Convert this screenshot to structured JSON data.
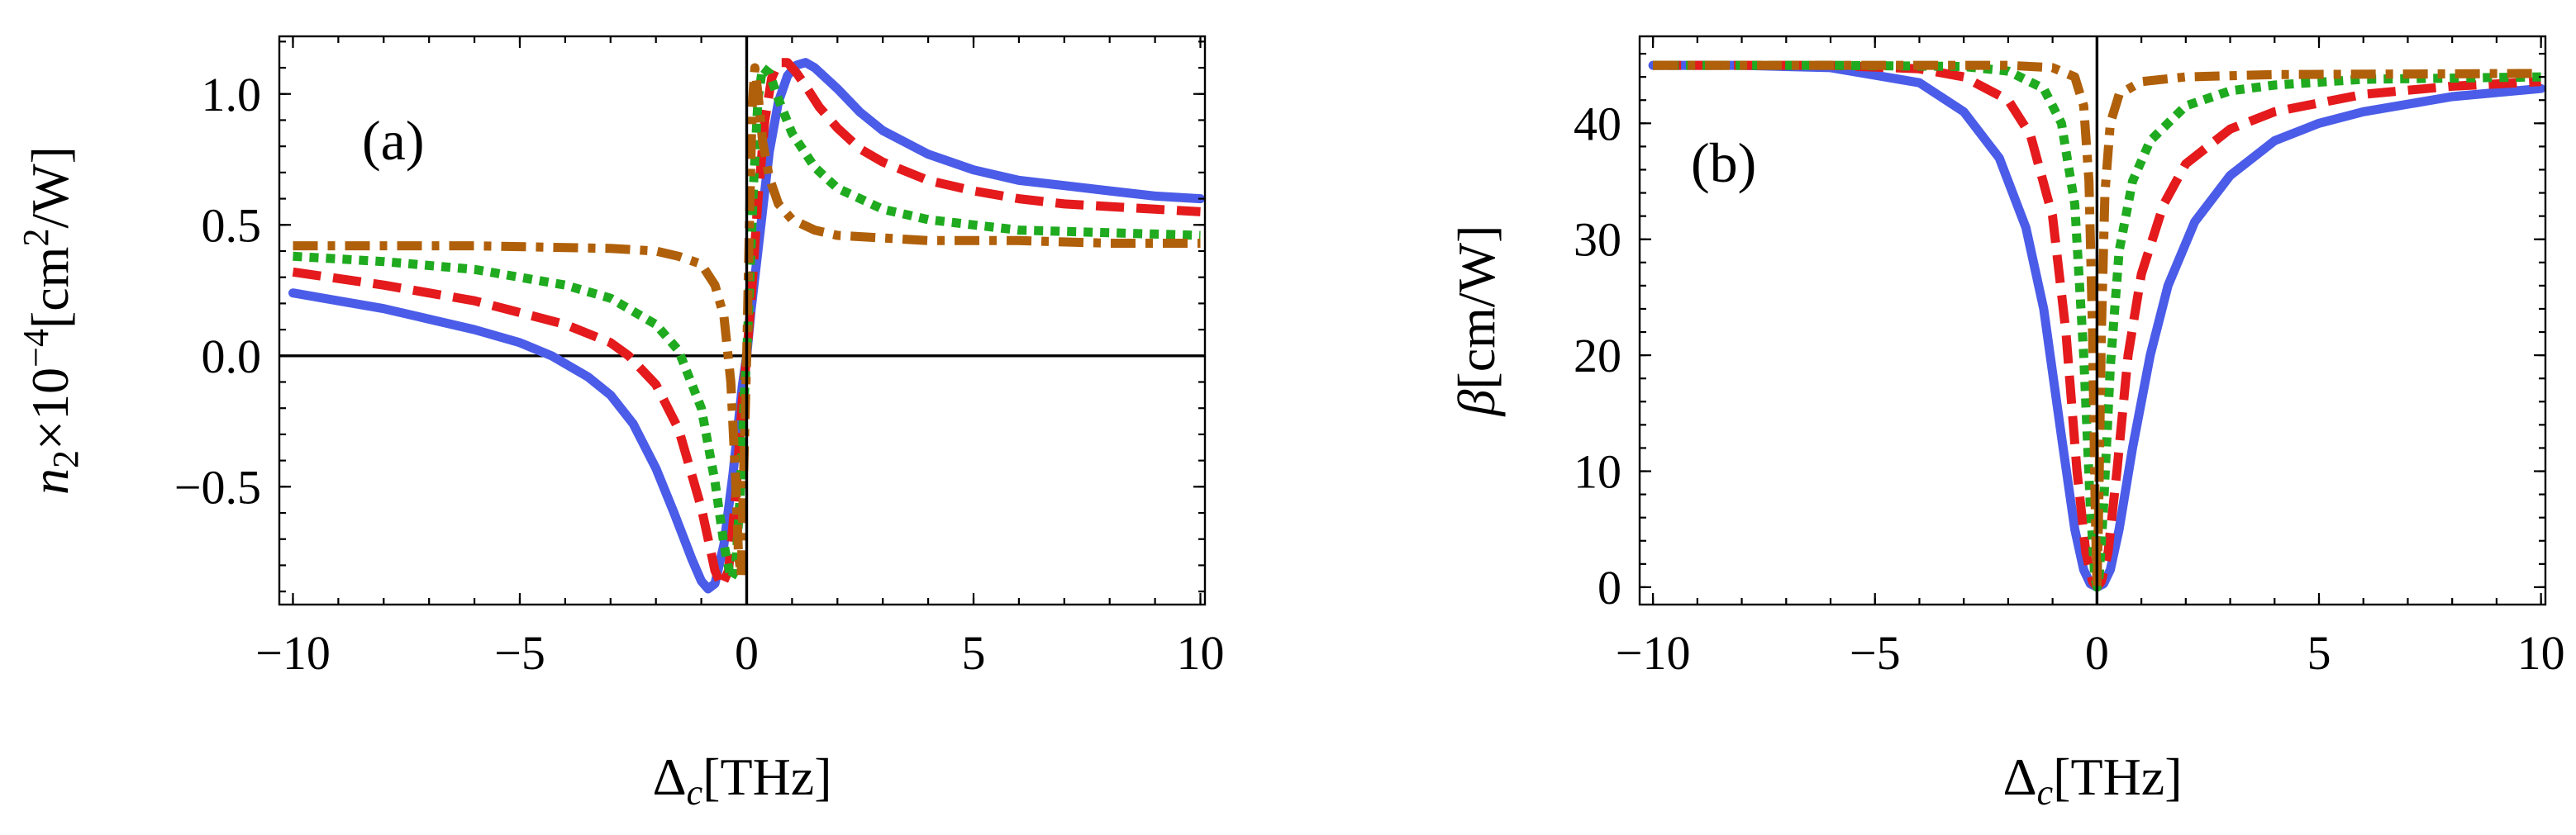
{
  "chart_data": [
    {
      "type": "line",
      "panel_label": "(a)",
      "xlabel": "Δ_c[THz]",
      "ylabel": "n_2×10^-4[cm^2/W]",
      "xlim": [
        -10.3,
        10.1
      ],
      "ylim": [
        -0.95,
        1.22
      ],
      "xticks": [
        -10,
        -5,
        0,
        5,
        10
      ],
      "xtick_labels": [
        "−10",
        "−5",
        "0",
        "5",
        "10"
      ],
      "yticks": [
        -0.5,
        0.0,
        0.5,
        1.0
      ],
      "ytick_labels": [
        "−0.5",
        "0.0",
        "0.5",
        "1.0"
      ],
      "series": [
        {
          "name": "solid",
          "color": "#4b5ce8",
          "style": "solid",
          "x": [
            -10,
            -8,
            -6,
            -5,
            -4.3,
            -3.5,
            -3,
            -2.5,
            -2,
            -1.6,
            -1.2,
            -1.0,
            -0.85,
            -0.7,
            -0.5,
            -0.3,
            -0.1,
            0,
            0.1,
            0.3,
            0.5,
            0.7,
            0.9,
            1.1,
            1.3,
            1.5,
            2,
            2.5,
            3,
            4,
            5,
            6,
            7,
            8,
            9,
            10
          ],
          "y": [
            0.24,
            0.18,
            0.1,
            0.05,
            0.0,
            -0.08,
            -0.15,
            -0.26,
            -0.43,
            -0.6,
            -0.78,
            -0.86,
            -0.89,
            -0.87,
            -0.72,
            -0.45,
            -0.12,
            0.0,
            0.18,
            0.48,
            0.78,
            0.97,
            1.07,
            1.11,
            1.12,
            1.1,
            1.02,
            0.93,
            0.86,
            0.77,
            0.71,
            0.67,
            0.65,
            0.63,
            0.61,
            0.6
          ]
        },
        {
          "name": "dashed",
          "color": "#e41a1c",
          "style": "dashed",
          "x": [
            -10,
            -8,
            -6,
            -4,
            -3,
            -2.6,
            -2,
            -1.5,
            -1.0,
            -0.7,
            -0.55,
            -0.4,
            -0.25,
            -0.1,
            0,
            0.1,
            0.25,
            0.4,
            0.55,
            0.7,
            0.9,
            1.1,
            1.3,
            1.6,
            2,
            2.5,
            3,
            4,
            5,
            6,
            7,
            8,
            9,
            10
          ],
          "y": [
            0.32,
            0.27,
            0.21,
            0.12,
            0.05,
            0.0,
            -0.11,
            -0.28,
            -0.58,
            -0.82,
            -0.88,
            -0.82,
            -0.55,
            -0.18,
            0.0,
            0.22,
            0.6,
            0.9,
            1.06,
            1.12,
            1.12,
            1.08,
            1.03,
            0.95,
            0.87,
            0.79,
            0.74,
            0.67,
            0.63,
            0.6,
            0.58,
            0.57,
            0.56,
            0.55
          ]
        },
        {
          "name": "dotted",
          "color": "#1faa1f",
          "style": "dotted",
          "x": [
            -10,
            -8,
            -6,
            -4,
            -3,
            -2,
            -1.5,
            -1.0,
            -0.7,
            -0.5,
            -0.35,
            -0.25,
            -0.15,
            -0.05,
            0,
            0.05,
            0.15,
            0.25,
            0.35,
            0.5,
            0.7,
            1.0,
            1.5,
            2,
            3,
            4,
            5,
            6,
            8,
            10
          ],
          "y": [
            0.38,
            0.36,
            0.33,
            0.27,
            0.22,
            0.12,
            0.02,
            -0.2,
            -0.48,
            -0.72,
            -0.85,
            -0.82,
            -0.55,
            -0.15,
            0.0,
            0.2,
            0.65,
            0.98,
            1.1,
            1.08,
            0.98,
            0.85,
            0.72,
            0.64,
            0.56,
            0.52,
            0.5,
            0.48,
            0.47,
            0.46
          ]
        },
        {
          "name": "dash-dot",
          "color": "#b0600a",
          "style": "dashdot",
          "x": [
            -10,
            -6,
            -3,
            -2,
            -1.5,
            -1.0,
            -0.7,
            -0.5,
            -0.35,
            -0.25,
            -0.18,
            -0.12,
            -0.06,
            0,
            0.06,
            0.12,
            0.18,
            0.25,
            0.35,
            0.5,
            0.7,
            1.0,
            1.5,
            2,
            3,
            4,
            6,
            8,
            10
          ],
          "y": [
            0.42,
            0.42,
            0.41,
            0.4,
            0.38,
            0.35,
            0.27,
            0.15,
            -0.1,
            -0.45,
            -0.76,
            -0.84,
            -0.4,
            0.0,
            0.5,
            0.95,
            1.1,
            1.0,
            0.82,
            0.68,
            0.58,
            0.52,
            0.48,
            0.46,
            0.45,
            0.44,
            0.44,
            0.43,
            0.43
          ]
        }
      ]
    },
    {
      "type": "line",
      "panel_label": "(b)",
      "xlabel": "Δ_c[THz]",
      "ylabel": "β[cm/W]",
      "xlim": [
        -10.3,
        10.1
      ],
      "ylim": [
        -1.5,
        47.5
      ],
      "xticks": [
        -10,
        -5,
        0,
        5,
        10
      ],
      "xtick_labels": [
        "−10",
        "−5",
        "0",
        "5",
        "10"
      ],
      "yticks": [
        0,
        10,
        20,
        30,
        40
      ],
      "ytick_labels": [
        "0",
        "10",
        "20",
        "30",
        "40"
      ],
      "series": [
        {
          "name": "solid",
          "color": "#4b5ce8",
          "style": "solid",
          "x": [
            -10,
            -8,
            -6,
            -4,
            -3,
            -2.2,
            -1.6,
            -1.2,
            -0.8,
            -0.5,
            -0.3,
            -0.15,
            0,
            0.15,
            0.3,
            0.5,
            0.8,
            1.2,
            1.6,
            2.2,
            3,
            4,
            5,
            6,
            8,
            10
          ],
          "y": [
            45,
            45,
            44.8,
            43.5,
            41,
            37,
            31,
            24,
            13,
            5,
            1.5,
            0.3,
            0,
            0.3,
            1.5,
            5,
            12,
            20,
            26,
            31.5,
            35.5,
            38.5,
            40,
            41,
            42.3,
            43
          ]
        },
        {
          "name": "dashed",
          "color": "#e41a1c",
          "style": "dashed",
          "x": [
            -10,
            -6,
            -4,
            -3,
            -2,
            -1.5,
            -1.0,
            -0.7,
            -0.45,
            -0.25,
            -0.1,
            0,
            0.1,
            0.25,
            0.45,
            0.7,
            1.0,
            1.5,
            2,
            3,
            4,
            6,
            8,
            10
          ],
          "y": [
            45,
            45,
            44.7,
            44,
            42,
            39,
            32,
            22,
            10,
            3,
            0.5,
            0,
            0.5,
            3,
            10,
            20,
            27,
            33,
            36.5,
            39.5,
            41,
            42.5,
            43.2,
            43.6
          ]
        },
        {
          "name": "dotted",
          "color": "#1faa1f",
          "style": "dotted",
          "x": [
            -10,
            -6,
            -3,
            -2,
            -1.2,
            -0.8,
            -0.5,
            -0.3,
            -0.15,
            -0.05,
            0,
            0.05,
            0.15,
            0.3,
            0.5,
            0.8,
            1.2,
            2,
            3,
            4,
            6,
            10
          ],
          "y": [
            45,
            45,
            44.9,
            44.5,
            43,
            40,
            33,
            20,
            7,
            1,
            0,
            1,
            7,
            19,
            29,
            35,
            38.5,
            41.5,
            42.8,
            43.3,
            43.8,
            44
          ]
        },
        {
          "name": "dash-dot",
          "color": "#b0600a",
          "style": "dashdot",
          "x": [
            -10,
            -4,
            -2,
            -1,
            -0.5,
            -0.3,
            -0.18,
            -0.1,
            -0.04,
            0,
            0.04,
            0.1,
            0.18,
            0.3,
            0.5,
            1,
            2,
            4,
            10
          ],
          "y": [
            45,
            45,
            45,
            44.8,
            44,
            41.5,
            35,
            22,
            7,
            0,
            7,
            22,
            34,
            40,
            42.5,
            43.6,
            44,
            44.2,
            44.3
          ]
        }
      ]
    }
  ]
}
